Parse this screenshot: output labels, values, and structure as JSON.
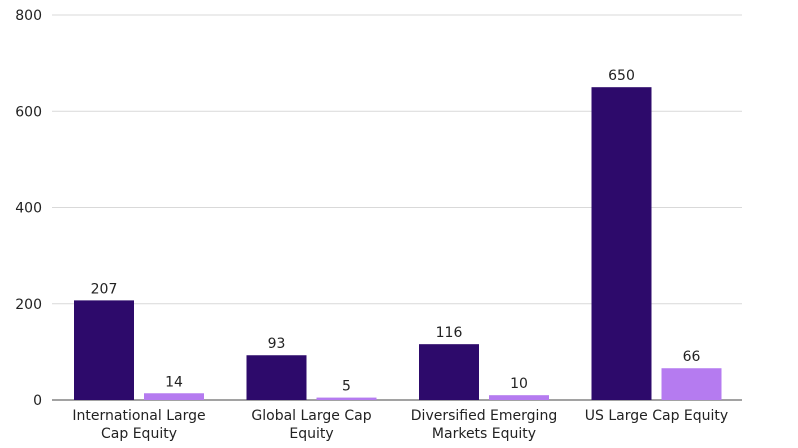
{
  "chart_data": {
    "type": "bar",
    "categories": [
      [
        "International Large",
        "Cap Equity"
      ],
      [
        "Global Large Cap",
        "Equity"
      ],
      [
        "Diversified Emerging",
        "Markets Equity"
      ],
      [
        "US Large Cap Equity"
      ]
    ],
    "series": [
      {
        "values": [
          207,
          93,
          116,
          650
        ],
        "color": "#2d0a6b"
      },
      {
        "values": [
          14,
          5,
          10,
          66
        ],
        "color": "#b57bf0"
      }
    ],
    "yticks": [
      0,
      200,
      400,
      600,
      800
    ],
    "ylim": [
      0,
      800
    ],
    "grid": true,
    "legend": "none"
  }
}
